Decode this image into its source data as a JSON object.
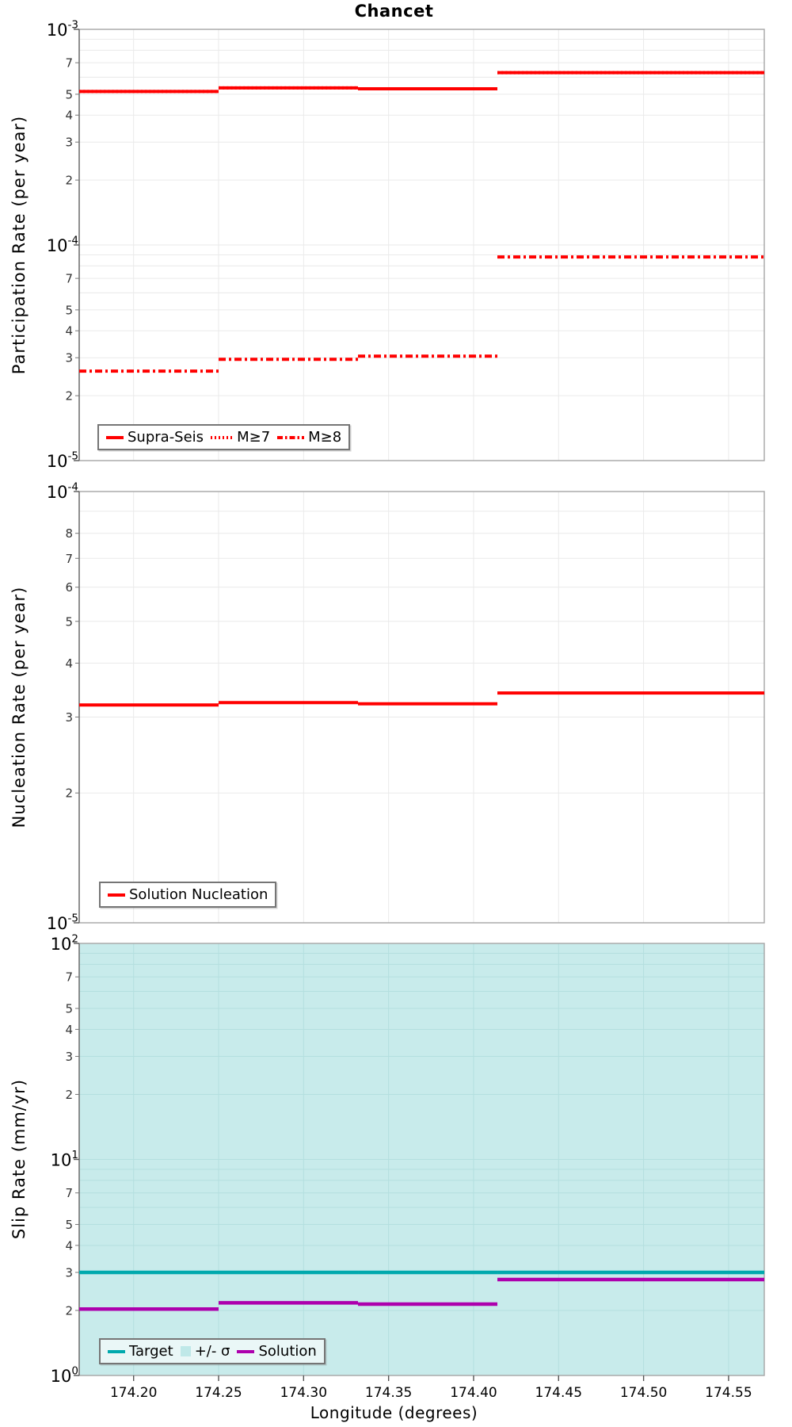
{
  "title": "Chancet",
  "xlabel": "Longitude (degrees)",
  "x_range": [
    174.168,
    174.571
  ],
  "x_ticks": [
    "174.20",
    "174.25",
    "174.30",
    "174.35",
    "174.40",
    "174.45",
    "174.50",
    "174.55"
  ],
  "step_edges": [
    174.168,
    174.25,
    174.332,
    174.414,
    174.571
  ],
  "colors": {
    "red": "#ff0000",
    "teal": "#00a9ad",
    "purple": "#ad00ad",
    "sigma_band": "#c8ebeb",
    "sigma_swatch": "#bfe8e8",
    "legend_bg_plain": "#ffffff",
    "legend_bg_band": "#eaf7f7"
  },
  "chart_data": [
    {
      "id": "participation",
      "type": "step-line",
      "ylabel": "Participation Rate (per year)",
      "ylim": [
        1e-05,
        0.001
      ],
      "y_major_exponents": [
        -3,
        -4,
        -5
      ],
      "y_minor_labels": [
        7,
        5,
        4,
        3,
        2
      ],
      "grid": true,
      "series": [
        {
          "name": "Supra-Seis",
          "style": "solid",
          "color": "#ff0000",
          "values": [
            0.000515,
            0.000535,
            0.00053,
            0.00063
          ]
        },
        {
          "name": "M≥7",
          "style": "dotted",
          "color": "#ff0000",
          "values": [
            0.000515,
            0.000535,
            0.00053,
            0.00063
          ]
        },
        {
          "name": "M≥8",
          "style": "dashdot",
          "color": "#ff0000",
          "values": [
            2.6e-05,
            2.95e-05,
            3.05e-05,
            8.8e-05
          ]
        }
      ],
      "legend": [
        {
          "label": "Supra-Seis",
          "style": "solid",
          "color": "#ff0000"
        },
        {
          "label": "M≥7",
          "style": "dotted",
          "color": "#ff0000"
        },
        {
          "label": "M≥8",
          "style": "dashdot",
          "color": "#ff0000"
        }
      ]
    },
    {
      "id": "nucleation",
      "type": "step-line",
      "ylabel": "Nucleation Rate (per year)",
      "ylim": [
        1e-05,
        0.0001
      ],
      "y_major_exponents": [
        -4,
        -5
      ],
      "y_minor_labels": [
        8,
        7,
        6,
        5,
        4,
        3,
        2
      ],
      "grid": true,
      "series": [
        {
          "name": "Solution Nucleation",
          "style": "solid",
          "color": "#ff0000",
          "values": [
            3.2e-05,
            3.24e-05,
            3.22e-05,
            3.41e-05
          ]
        }
      ],
      "legend": [
        {
          "label": "Solution Nucleation",
          "style": "solid",
          "color": "#ff0000"
        }
      ]
    },
    {
      "id": "slip-rate",
      "type": "step-line",
      "ylabel": "Slip Rate (mm/yr)",
      "ylim": [
        1,
        100
      ],
      "y_major_exponents": [
        2,
        1,
        0
      ],
      "y_minor_labels": [
        7,
        5,
        4,
        3,
        2
      ],
      "grid": true,
      "band": {
        "name": "+/- σ",
        "covers_full_plot": true
      },
      "series": [
        {
          "name": "Target",
          "style": "solid",
          "color": "#00a9ad",
          "values": [
            3.0,
            3.0,
            3.0,
            3.0
          ]
        },
        {
          "name": "Solution",
          "style": "solid",
          "color": "#ad00ad",
          "values": [
            2.03,
            2.17,
            2.14,
            2.78
          ]
        }
      ],
      "legend": [
        {
          "label": "Target",
          "style": "solid",
          "color": "#00a9ad"
        },
        {
          "label": "+/- σ",
          "style": "patch",
          "color": "#bfe8e8"
        },
        {
          "label": "Solution",
          "style": "solid",
          "color": "#ad00ad"
        }
      ]
    }
  ]
}
